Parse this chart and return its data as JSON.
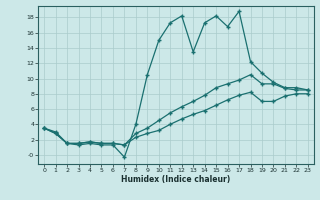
{
  "xlabel": "Humidex (Indice chaleur)",
  "xlim": [
    -0.5,
    23.5
  ],
  "ylim": [
    -1.2,
    19.5
  ],
  "xticks": [
    0,
    1,
    2,
    3,
    4,
    5,
    6,
    7,
    8,
    9,
    10,
    11,
    12,
    13,
    14,
    15,
    16,
    17,
    18,
    19,
    20,
    21,
    22,
    23
  ],
  "yticks": [
    0,
    2,
    4,
    6,
    8,
    10,
    12,
    14,
    16,
    18
  ],
  "bg_color": "#cce8e8",
  "grid_color": "#aacccc",
  "line_color": "#1a7070",
  "line1_x": [
    0,
    1,
    2,
    3,
    4,
    5,
    6,
    7,
    8,
    9,
    10,
    11,
    12,
    13,
    14,
    15,
    16,
    17,
    18,
    19,
    20,
    21,
    22,
    23
  ],
  "line1_y": [
    3.5,
    3.0,
    1.5,
    1.3,
    1.5,
    1.3,
    1.3,
    -0.3,
    4.0,
    10.5,
    15.0,
    17.3,
    18.2,
    13.5,
    17.3,
    18.2,
    16.8,
    18.8,
    12.2,
    10.7,
    9.5,
    8.8,
    8.8,
    8.5
  ],
  "line2_x": [
    0,
    1,
    2,
    3,
    4,
    5,
    6,
    7,
    8,
    9,
    10,
    11,
    12,
    13,
    14,
    15,
    16,
    17,
    18,
    19,
    20,
    21,
    22,
    23
  ],
  "line2_y": [
    3.5,
    2.8,
    1.5,
    1.5,
    1.7,
    1.5,
    1.5,
    1.3,
    2.8,
    3.5,
    4.5,
    5.5,
    6.3,
    7.0,
    7.8,
    8.8,
    9.3,
    9.8,
    10.5,
    9.3,
    9.3,
    8.7,
    8.5,
    8.5
  ],
  "line3_x": [
    0,
    1,
    2,
    3,
    4,
    5,
    6,
    7,
    8,
    9,
    10,
    11,
    12,
    13,
    14,
    15,
    16,
    17,
    18,
    19,
    20,
    21,
    22,
    23
  ],
  "line3_y": [
    3.5,
    2.8,
    1.5,
    1.5,
    1.7,
    1.5,
    1.5,
    1.3,
    2.3,
    2.8,
    3.2,
    4.0,
    4.7,
    5.3,
    5.8,
    6.5,
    7.2,
    7.8,
    8.2,
    7.0,
    7.0,
    7.7,
    8.0,
    8.0
  ]
}
